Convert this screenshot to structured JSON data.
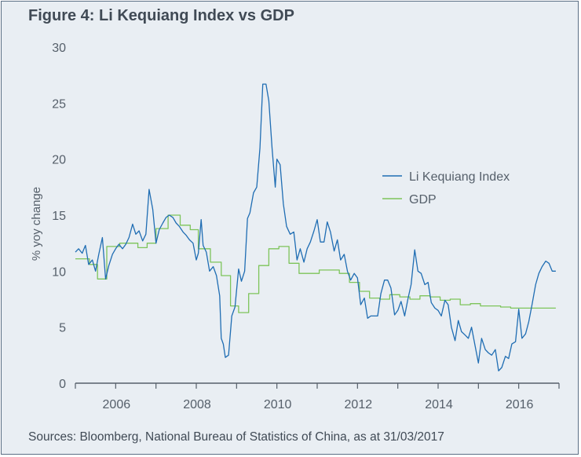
{
  "figure": {
    "title": "Figure 4: Li Kequiang Index vs GDP",
    "source": "Sources: Bloomberg, National Bureau of Statistics of China, as at 31/03/2017"
  },
  "colors": {
    "background": "#e9eef3",
    "border": "#5b6f84",
    "text": "#404a55",
    "li_index": "#1f6db3",
    "gdp": "#7dc45a"
  },
  "chart_data": {
    "type": "line",
    "title": "Figure 4: Li Kequiang Index vs GDP",
    "xlabel": "",
    "ylabel": "% yoy change",
    "xlim": [
      2005.0,
      2017.0
    ],
    "ylim": [
      0,
      30
    ],
    "x_ticks": [
      2006,
      2008,
      2010,
      2012,
      2014,
      2016
    ],
    "y_ticks": [
      0,
      5,
      10,
      15,
      20,
      25,
      30
    ],
    "grid": false,
    "legend_position": "right",
    "series": [
      {
        "name": "Li Kequiang Index",
        "color": "#1f6db3",
        "points": [
          [
            2005.0,
            11.7
          ],
          [
            2005.08,
            12.0
          ],
          [
            2005.17,
            11.6
          ],
          [
            2005.25,
            12.3
          ],
          [
            2005.33,
            10.6
          ],
          [
            2005.42,
            11.0
          ],
          [
            2005.5,
            10.0
          ],
          [
            2005.58,
            11.5
          ],
          [
            2005.67,
            13.0
          ],
          [
            2005.75,
            9.3
          ],
          [
            2005.83,
            10.5
          ],
          [
            2005.92,
            11.5
          ],
          [
            2006.0,
            12.0
          ],
          [
            2006.08,
            12.4
          ],
          [
            2006.17,
            12.0
          ],
          [
            2006.25,
            12.4
          ],
          [
            2006.33,
            13.0
          ],
          [
            2006.42,
            14.2
          ],
          [
            2006.5,
            13.3
          ],
          [
            2006.58,
            13.6
          ],
          [
            2006.67,
            12.7
          ],
          [
            2006.75,
            13.3
          ],
          [
            2006.83,
            17.3
          ],
          [
            2006.92,
            15.5
          ],
          [
            2007.0,
            12.5
          ],
          [
            2007.08,
            13.7
          ],
          [
            2007.17,
            14.3
          ],
          [
            2007.25,
            14.8
          ],
          [
            2007.33,
            15.0
          ],
          [
            2007.42,
            14.8
          ],
          [
            2007.5,
            14.3
          ],
          [
            2007.58,
            14.0
          ],
          [
            2007.67,
            13.5
          ],
          [
            2007.75,
            13.2
          ],
          [
            2007.83,
            12.8
          ],
          [
            2007.92,
            12.5
          ],
          [
            2008.0,
            11.0
          ],
          [
            2008.05,
            11.6
          ],
          [
            2008.12,
            14.6
          ],
          [
            2008.17,
            12.3
          ],
          [
            2008.25,
            11.7
          ],
          [
            2008.33,
            10.0
          ],
          [
            2008.42,
            10.4
          ],
          [
            2008.5,
            9.6
          ],
          [
            2008.58,
            7.8
          ],
          [
            2008.62,
            4.0
          ],
          [
            2008.67,
            3.5
          ],
          [
            2008.72,
            2.3
          ],
          [
            2008.8,
            2.5
          ],
          [
            2008.88,
            6.0
          ],
          [
            2008.96,
            6.8
          ],
          [
            2009.05,
            10.2
          ],
          [
            2009.12,
            9.1
          ],
          [
            2009.2,
            10.0
          ],
          [
            2009.27,
            14.7
          ],
          [
            2009.33,
            15.2
          ],
          [
            2009.42,
            17.0
          ],
          [
            2009.5,
            17.5
          ],
          [
            2009.58,
            21.0
          ],
          [
            2009.65,
            26.7
          ],
          [
            2009.73,
            26.7
          ],
          [
            2009.8,
            25.2
          ],
          [
            2009.88,
            21.0
          ],
          [
            2009.96,
            17.5
          ],
          [
            2010.0,
            20.0
          ],
          [
            2010.08,
            19.5
          ],
          [
            2010.16,
            16.0
          ],
          [
            2010.24,
            14.0
          ],
          [
            2010.33,
            13.3
          ],
          [
            2010.42,
            13.5
          ],
          [
            2010.5,
            11.0
          ],
          [
            2010.58,
            12.0
          ],
          [
            2010.67,
            10.8
          ],
          [
            2010.75,
            12.0
          ],
          [
            2010.83,
            12.6
          ],
          [
            2010.92,
            13.6
          ],
          [
            2011.0,
            14.6
          ],
          [
            2011.08,
            12.6
          ],
          [
            2011.17,
            12.6
          ],
          [
            2011.25,
            14.4
          ],
          [
            2011.33,
            13.5
          ],
          [
            2011.42,
            11.8
          ],
          [
            2011.5,
            12.8
          ],
          [
            2011.58,
            11.0
          ],
          [
            2011.67,
            11.5
          ],
          [
            2011.75,
            10.0
          ],
          [
            2011.83,
            9.2
          ],
          [
            2011.92,
            9.8
          ],
          [
            2012.0,
            9.4
          ],
          [
            2012.08,
            7.0
          ],
          [
            2012.17,
            7.6
          ],
          [
            2012.25,
            5.8
          ],
          [
            2012.33,
            6.0
          ],
          [
            2012.42,
            6.0
          ],
          [
            2012.5,
            6.0
          ],
          [
            2012.58,
            8.0
          ],
          [
            2012.67,
            9.2
          ],
          [
            2012.75,
            9.2
          ],
          [
            2012.83,
            8.5
          ],
          [
            2012.92,
            6.1
          ],
          [
            2013.0,
            6.5
          ],
          [
            2013.08,
            7.3
          ],
          [
            2013.17,
            6.0
          ],
          [
            2013.25,
            7.5
          ],
          [
            2013.33,
            8.8
          ],
          [
            2013.42,
            11.9
          ],
          [
            2013.5,
            10.0
          ],
          [
            2013.58,
            9.8
          ],
          [
            2013.67,
            8.8
          ],
          [
            2013.75,
            9.0
          ],
          [
            2013.83,
            7.2
          ],
          [
            2013.92,
            6.7
          ],
          [
            2014.0,
            6.5
          ],
          [
            2014.08,
            6.0
          ],
          [
            2014.17,
            7.4
          ],
          [
            2014.25,
            7.0
          ],
          [
            2014.33,
            5.0
          ],
          [
            2014.42,
            3.8
          ],
          [
            2014.5,
            5.6
          ],
          [
            2014.58,
            4.6
          ],
          [
            2014.67,
            4.3
          ],
          [
            2014.75,
            4.0
          ],
          [
            2014.83,
            5.0
          ],
          [
            2014.92,
            3.3
          ],
          [
            2015.0,
            1.8
          ],
          [
            2015.08,
            4.0
          ],
          [
            2015.17,
            3.0
          ],
          [
            2015.25,
            2.7
          ],
          [
            2015.33,
            2.5
          ],
          [
            2015.42,
            3.0
          ],
          [
            2015.5,
            1.1
          ],
          [
            2015.58,
            1.4
          ],
          [
            2015.67,
            2.4
          ],
          [
            2015.75,
            2.2
          ],
          [
            2015.83,
            3.5
          ],
          [
            2015.92,
            3.7
          ],
          [
            2016.0,
            6.6
          ],
          [
            2016.08,
            4.0
          ],
          [
            2016.17,
            4.4
          ],
          [
            2016.25,
            5.5
          ],
          [
            2016.33,
            7.0
          ],
          [
            2016.42,
            8.8
          ],
          [
            2016.5,
            9.8
          ],
          [
            2016.58,
            10.4
          ],
          [
            2016.67,
            10.9
          ],
          [
            2016.75,
            10.7
          ],
          [
            2016.83,
            10.0
          ],
          [
            2016.92,
            10.0
          ]
        ]
      },
      {
        "name": "GDP",
        "color": "#7dc45a",
        "points": [
          [
            2005.0,
            11.1
          ],
          [
            2005.35,
            11.1
          ],
          [
            2005.35,
            10.6
          ],
          [
            2005.55,
            10.6
          ],
          [
            2005.55,
            9.3
          ],
          [
            2005.78,
            9.3
          ],
          [
            2005.78,
            12.2
          ],
          [
            2006.1,
            12.2
          ],
          [
            2006.1,
            12.5
          ],
          [
            2006.55,
            12.5
          ],
          [
            2006.55,
            12.1
          ],
          [
            2006.78,
            12.1
          ],
          [
            2006.78,
            12.5
          ],
          [
            2007.0,
            12.5
          ],
          [
            2007.0,
            13.8
          ],
          [
            2007.3,
            13.8
          ],
          [
            2007.3,
            15.0
          ],
          [
            2007.6,
            15.0
          ],
          [
            2007.6,
            14.1
          ],
          [
            2007.85,
            14.1
          ],
          [
            2007.85,
            13.7
          ],
          [
            2008.05,
            13.7
          ],
          [
            2008.05,
            12.0
          ],
          [
            2008.35,
            12.0
          ],
          [
            2008.35,
            10.8
          ],
          [
            2008.62,
            10.8
          ],
          [
            2008.62,
            9.6
          ],
          [
            2008.85,
            9.6
          ],
          [
            2008.85,
            6.9
          ],
          [
            2009.05,
            6.9
          ],
          [
            2009.05,
            6.3
          ],
          [
            2009.3,
            6.3
          ],
          [
            2009.3,
            8.0
          ],
          [
            2009.55,
            8.0
          ],
          [
            2009.55,
            10.5
          ],
          [
            2009.8,
            10.5
          ],
          [
            2009.8,
            12.0
          ],
          [
            2010.05,
            12.0
          ],
          [
            2010.05,
            12.2
          ],
          [
            2010.3,
            12.2
          ],
          [
            2010.3,
            10.7
          ],
          [
            2010.55,
            10.7
          ],
          [
            2010.55,
            9.8
          ],
          [
            2011.05,
            9.8
          ],
          [
            2011.05,
            10.1
          ],
          [
            2011.55,
            10.1
          ],
          [
            2011.55,
            9.8
          ],
          [
            2011.8,
            9.8
          ],
          [
            2011.8,
            9.0
          ],
          [
            2012.05,
            9.0
          ],
          [
            2012.05,
            8.2
          ],
          [
            2012.3,
            8.2
          ],
          [
            2012.3,
            7.6
          ],
          [
            2012.55,
            7.6
          ],
          [
            2012.55,
            7.5
          ],
          [
            2012.8,
            7.5
          ],
          [
            2012.8,
            7.9
          ],
          [
            2013.05,
            7.9
          ],
          [
            2013.05,
            7.7
          ],
          [
            2013.3,
            7.7
          ],
          [
            2013.3,
            7.5
          ],
          [
            2013.55,
            7.5
          ],
          [
            2013.55,
            7.8
          ],
          [
            2013.8,
            7.8
          ],
          [
            2013.8,
            7.7
          ],
          [
            2014.05,
            7.7
          ],
          [
            2014.05,
            7.4
          ],
          [
            2014.3,
            7.4
          ],
          [
            2014.3,
            7.5
          ],
          [
            2014.55,
            7.5
          ],
          [
            2014.55,
            7.0
          ],
          [
            2014.8,
            7.0
          ],
          [
            2014.8,
            7.1
          ],
          [
            2015.05,
            7.1
          ],
          [
            2015.05,
            6.9
          ],
          [
            2015.55,
            6.9
          ],
          [
            2015.55,
            6.8
          ],
          [
            2015.8,
            6.8
          ],
          [
            2015.8,
            6.7
          ],
          [
            2016.92,
            6.7
          ]
        ]
      }
    ]
  }
}
